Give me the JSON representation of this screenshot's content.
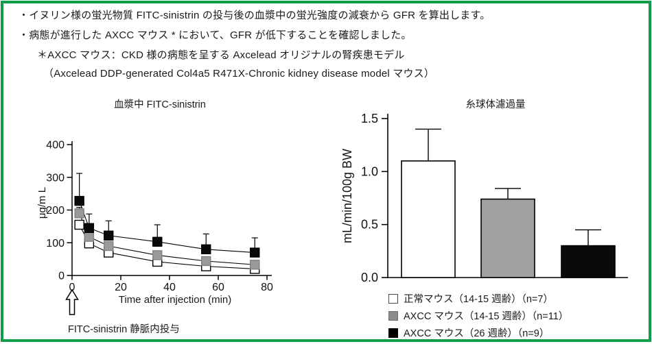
{
  "frame": {
    "border_color": "#0f9d49"
  },
  "header": {
    "lines": [
      "・イヌリン様の蛍光物質 FITC-sinistrin の投与後の血漿中の蛍光強度の減衰から GFR を算出します。",
      "・病態が進行した AXCC マウス * において、GFR が低下することを確認しました。",
      "＊AXCC マウス：CKD 様の病態を呈する Axcelead オリジナルの腎疾患モデル",
      "（Axcelead DDP-generated Col4a5 R471X-Chronic kidney disease model マウス）"
    ]
  },
  "chart_data": [
    {
      "type": "line",
      "title": "血漿中 FITC-sinistrin",
      "xlabel": "Time after injection (min)",
      "ylabel": "μg/m L",
      "xlim": [
        0,
        80
      ],
      "ylim": [
        0,
        400
      ],
      "xticks": [
        0,
        20,
        40,
        60,
        80
      ],
      "yticks": [
        0,
        100,
        200,
        300,
        400
      ],
      "x": [
        3,
        7,
        15,
        35,
        55,
        75
      ],
      "series": [
        {
          "name": "正常マウス（14-15 週齢）（n=7）",
          "marker_color": "#ffffff",
          "marker_stroke": "#000000",
          "values": [
            155,
            98,
            70,
            42,
            28,
            20
          ],
          "err_upper": [
            8,
            6,
            5,
            4,
            4,
            4
          ]
        },
        {
          "name": "AXCC マウス（14-15 週齢）（n=11）",
          "marker_color": "#9a9a9a",
          "marker_stroke": "#808080",
          "values": [
            190,
            118,
            90,
            62,
            44,
            33
          ],
          "err_upper": [
            18,
            12,
            8,
            6,
            5,
            5
          ]
        },
        {
          "name": "AXCC マウス（26 週齢）（n=9）",
          "marker_color": "#0a0a0a",
          "marker_stroke": "#000000",
          "values": [
            228,
            145,
            122,
            103,
            80,
            70
          ],
          "err_upper": [
            84,
            43,
            45,
            52,
            47,
            45
          ]
        }
      ],
      "annotation": "FITC-sinistrin 静脈内投与",
      "injection_arrow_x": 0
    },
    {
      "type": "bar",
      "title": "糸球体濾過量",
      "ylabel": "mL/min/100g BW",
      "ylim": [
        0,
        1.5
      ],
      "yticks": [
        0,
        0.5,
        1.0,
        1.5
      ],
      "ytick_labels": [
        "0.0",
        "0.5",
        "1.0",
        "1.5"
      ],
      "categories": [
        "正常マウス（14-15 週齢）（n=7）",
        "AXCC マウス（14-15 週齢）（n=11）",
        "AXCC マウス（26 週齢）（n=9）"
      ],
      "values": [
        1.1,
        0.74,
        0.3
      ],
      "errors_upper": [
        0.3,
        0.1,
        0.15
      ],
      "colors": [
        "#ffffff",
        "#a0a0a0",
        "#0a0a0a"
      ]
    }
  ],
  "legend": {
    "items": [
      {
        "label": "正常マウス（14-15 週齢）（n=7）",
        "color": "#ffffff"
      },
      {
        "label": "AXCC マウス（14-15 週齢）（n=11）",
        "color": "#8c8c8c"
      },
      {
        "label": "AXCC マウス（26 週齢）（n=9）",
        "color": "#000000"
      }
    ]
  }
}
